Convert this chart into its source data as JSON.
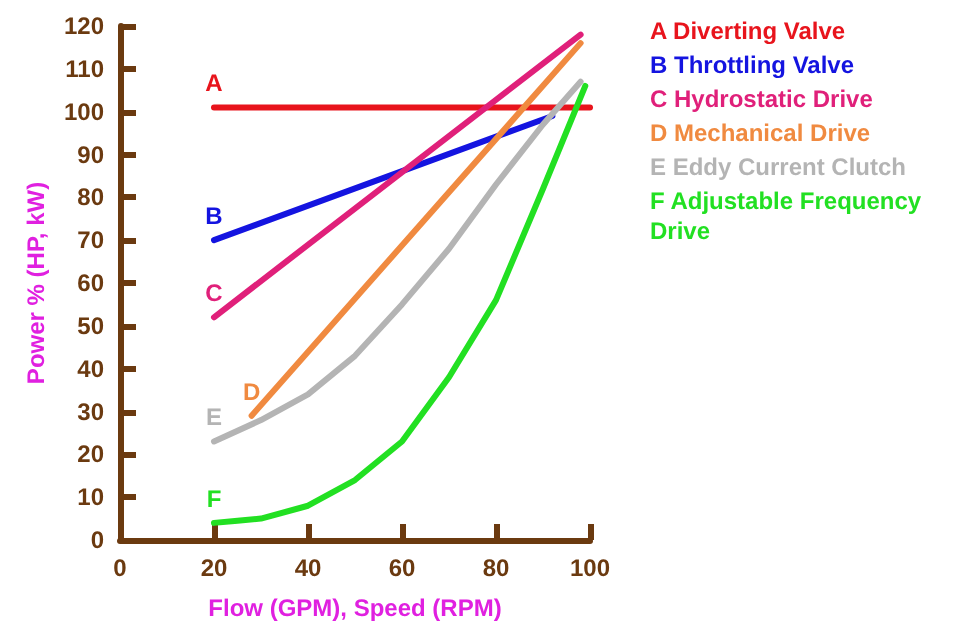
{
  "chart_data": {
    "type": "line",
    "xlabel": "Flow (GPM), Speed (RPM)",
    "ylabel": "Power % (HP, kW)",
    "xlim": [
      0,
      100
    ],
    "xticks": [
      0,
      20,
      40,
      60,
      80,
      100
    ],
    "ylim": [
      0,
      120
    ],
    "yticks": [
      0,
      10,
      20,
      30,
      40,
      50,
      60,
      70,
      80,
      90,
      100,
      110,
      120
    ],
    "grid": false,
    "legend": "right",
    "marker": "none",
    "line_style": "solid",
    "series": [
      {
        "name": "A Diverting Valve",
        "color": "#e8141c",
        "x": [
          20,
          100
        ],
        "values": [
          101,
          101
        ]
      },
      {
        "name": "B Throttling Valve",
        "color": "#1414e0",
        "x": [
          20,
          92
        ],
        "values": [
          70,
          99
        ]
      },
      {
        "name": "C Hydrostatic Drive",
        "color": "#e0207a",
        "x": [
          20,
          98
        ],
        "values": [
          52,
          118
        ]
      },
      {
        "name": "D Mechanical Drive",
        "color": "#f08a40",
        "x": [
          28,
          98
        ],
        "values": [
          29,
          116
        ]
      },
      {
        "name": "E Eddy Current Clutch",
        "color": "#b4b4b4",
        "x": [
          20,
          30,
          40,
          50,
          60,
          70,
          80,
          90,
          98
        ],
        "values": [
          23,
          28,
          34,
          43,
          55,
          68,
          83,
          97,
          107
        ]
      },
      {
        "name": "F Adjustable Frequency Drive",
        "color": "#22e022",
        "x": [
          20,
          25,
          30,
          40,
          50,
          60,
          70,
          80,
          90,
          99
        ],
        "values": [
          4,
          4.5,
          5,
          8,
          14,
          23,
          38,
          56,
          82,
          106
        ]
      }
    ],
    "annotations": [
      "A",
      "B",
      "C",
      "D",
      "E",
      "F"
    ]
  }
}
